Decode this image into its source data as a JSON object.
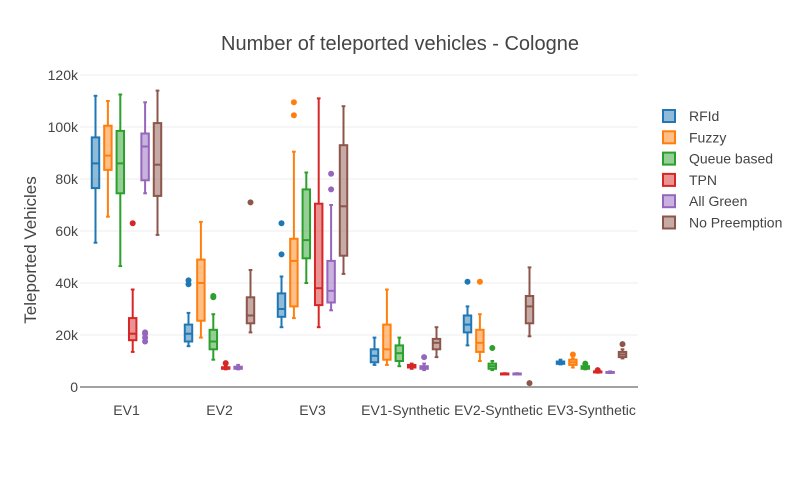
{
  "chart_data": {
    "type": "box",
    "title": "Number of teleported vehicles - Cologne",
    "xlabel": "",
    "ylabel": "Teleported Vehicles",
    "ylim": [
      -5000,
      120000
    ],
    "yticks": [
      0,
      20000,
      40000,
      60000,
      80000,
      100000,
      120000
    ],
    "ytick_labels": [
      "0",
      "20k",
      "40k",
      "60k",
      "80k",
      "100k",
      "120k"
    ],
    "grid": true,
    "legend_position": "right",
    "categories": [
      "EV1",
      "EV2",
      "EV3",
      "EV1-Synthetic",
      "EV2-Synthetic",
      "EV3-Synthetic"
    ],
    "series": [
      {
        "name": "RFId",
        "color": "#1f77b4",
        "boxes": [
          {
            "min": 55500,
            "q1": 76500,
            "median": 86000,
            "q3": 96000,
            "max": 112000,
            "outliers": []
          },
          {
            "min": 15700,
            "q1": 17500,
            "median": 20500,
            "q3": 24000,
            "max": 28500,
            "outliers": [
              39500,
              41000
            ]
          },
          {
            "min": 23000,
            "q1": 27000,
            "median": 30000,
            "q3": 36000,
            "max": 42500,
            "outliers": [
              51000,
              63000
            ]
          },
          {
            "min": 8500,
            "q1": 9500,
            "median": 12000,
            "q3": 14500,
            "max": 19000,
            "outliers": []
          },
          {
            "min": 16000,
            "q1": 21000,
            "median": 24000,
            "q3": 27500,
            "max": 31000,
            "outliers": [
              40500
            ]
          },
          {
            "min": 8700,
            "q1": 8900,
            "median": 9300,
            "q3": 9800,
            "max": 10500,
            "outliers": []
          }
        ]
      },
      {
        "name": "Fuzzy",
        "color": "#ff7f0e",
        "boxes": [
          {
            "min": 65500,
            "q1": 83500,
            "median": 89000,
            "q3": 100500,
            "max": 110000,
            "outliers": []
          },
          {
            "min": 19000,
            "q1": 25500,
            "median": 40000,
            "q3": 49000,
            "max": 63500,
            "outliers": []
          },
          {
            "min": 26500,
            "q1": 31000,
            "median": 48500,
            "q3": 57000,
            "max": 90500,
            "outliers": [
              104500,
              109500
            ]
          },
          {
            "min": 8500,
            "q1": 10500,
            "median": 14500,
            "q3": 24000,
            "max": 37500,
            "outliers": []
          },
          {
            "min": 10000,
            "q1": 13500,
            "median": 17000,
            "q3": 22000,
            "max": 28000,
            "outliers": [
              40500
            ]
          },
          {
            "min": 7500,
            "q1": 8500,
            "median": 9500,
            "q3": 10500,
            "max": 11000,
            "outliers": [
              12500
            ]
          }
        ]
      },
      {
        "name": "Queue based",
        "color": "#2ca02c",
        "boxes": [
          {
            "min": 46500,
            "q1": 74500,
            "median": 86000,
            "q3": 98500,
            "max": 112500,
            "outliers": []
          },
          {
            "min": 10500,
            "q1": 14500,
            "median": 17500,
            "q3": 22000,
            "max": 28000,
            "outliers": [
              34500,
              35000
            ]
          },
          {
            "min": 40000,
            "q1": 49500,
            "median": 56500,
            "q3": 76000,
            "max": 82500,
            "outliers": []
          },
          {
            "min": 8000,
            "q1": 10000,
            "median": 13000,
            "q3": 16000,
            "max": 19000,
            "outliers": []
          },
          {
            "min": 6500,
            "q1": 7000,
            "median": 8000,
            "q3": 9000,
            "max": 10000,
            "outliers": [
              15000
            ]
          },
          {
            "min": 6800,
            "q1": 7000,
            "median": 7500,
            "q3": 8000,
            "max": 8300,
            "outliers": [
              9000
            ]
          }
        ]
      },
      {
        "name": "TPN",
        "color": "#d62728",
        "boxes": [
          {
            "min": 13500,
            "q1": 18000,
            "median": 20500,
            "q3": 26500,
            "max": 37500,
            "outliers": [
              63000
            ]
          },
          {
            "min": 6800,
            "q1": 7000,
            "median": 7300,
            "q3": 7600,
            "max": 8000,
            "outliers": [
              9200
            ]
          },
          {
            "min": 23000,
            "q1": 31500,
            "median": 38000,
            "q3": 70500,
            "max": 111000,
            "outliers": []
          },
          {
            "min": 7000,
            "q1": 7500,
            "median": 8000,
            "q3": 8500,
            "max": 9000,
            "outliers": []
          },
          {
            "min": 5000,
            "q1": 5000,
            "median": 5100,
            "q3": 5200,
            "max": 5300,
            "outliers": []
          },
          {
            "min": 5500,
            "q1": 5600,
            "median": 5800,
            "q3": 6000,
            "max": 6200,
            "outliers": [
              6500
            ]
          }
        ]
      },
      {
        "name": "All Green",
        "color": "#9467bd",
        "boxes": [
          {
            "min": 74500,
            "q1": 79500,
            "median": 92500,
            "q3": 97500,
            "max": 109500,
            "outliers": [
              17500,
              19000,
              20500,
              21000
            ]
          },
          {
            "min": 6800,
            "q1": 7000,
            "median": 7300,
            "q3": 7800,
            "max": 8500,
            "outliers": []
          },
          {
            "min": 29500,
            "q1": 32500,
            "median": 37000,
            "q3": 48500,
            "max": 70000,
            "outliers": [
              76000,
              82000
            ]
          },
          {
            "min": 6500,
            "q1": 7000,
            "median": 7500,
            "q3": 8000,
            "max": 9000,
            "outliers": [
              11500
            ]
          },
          {
            "min": 5000,
            "q1": 5000,
            "median": 5100,
            "q3": 5200,
            "max": 5300,
            "outliers": []
          },
          {
            "min": 5400,
            "q1": 5500,
            "median": 5600,
            "q3": 5800,
            "max": 6000,
            "outliers": []
          }
        ]
      },
      {
        "name": "No Preemption",
        "color": "#8c564b",
        "boxes": [
          {
            "min": 58500,
            "q1": 73500,
            "median": 85500,
            "q3": 101500,
            "max": 114000,
            "outliers": []
          },
          {
            "min": 21000,
            "q1": 24500,
            "median": 27500,
            "q3": 34500,
            "max": 45000,
            "outliers": [
              71000
            ]
          },
          {
            "min": 43500,
            "q1": 50500,
            "median": 69500,
            "q3": 93000,
            "max": 108000,
            "outliers": []
          },
          {
            "min": 11500,
            "q1": 14500,
            "median": 17000,
            "q3": 18500,
            "max": 23000,
            "outliers": []
          },
          {
            "min": 19500,
            "q1": 24500,
            "median": 31000,
            "q3": 35000,
            "max": 46000,
            "outliers": [
              1500
            ]
          },
          {
            "min": 11000,
            "q1": 11500,
            "median": 12500,
            "q3": 13500,
            "max": 14500,
            "outliers": [
              16500
            ]
          }
        ]
      }
    ]
  }
}
